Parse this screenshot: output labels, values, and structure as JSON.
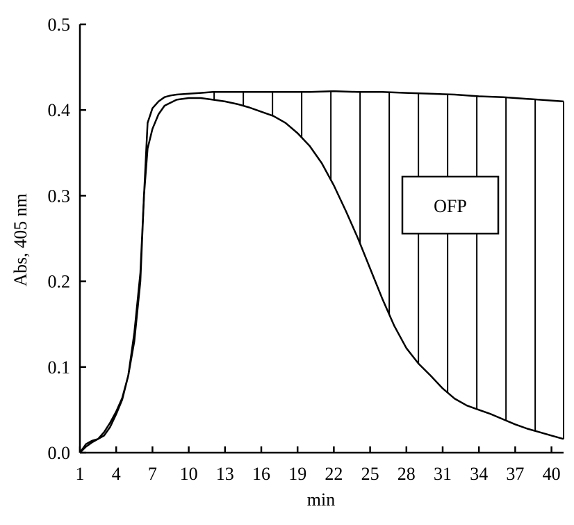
{
  "chart_data": {
    "type": "line",
    "xlabel": "min",
    "ylabel": "Abs, 405 nm",
    "xlim": [
      1,
      41
    ],
    "ylim": [
      0,
      0.5
    ],
    "x_ticks": [
      1,
      4,
      7,
      10,
      13,
      16,
      19,
      22,
      25,
      28,
      31,
      34,
      37,
      40
    ],
    "x_tick_labels": [
      "1",
      "4",
      "7",
      "10",
      "13",
      "16",
      "19",
      "22",
      "25",
      "28",
      "31",
      "34",
      "37",
      "40"
    ],
    "y_ticks": [
      0,
      0.1,
      0.2,
      0.3,
      0.4,
      0.5
    ],
    "y_tick_labels": [
      "0.0",
      "0.1",
      "0.2",
      "0.3",
      "0.4",
      "0.5"
    ],
    "grid": false,
    "series": [
      {
        "x": [
          1,
          1.5,
          2,
          2.5,
          3,
          3.5,
          4,
          4.5,
          5,
          5.5,
          6,
          6.3,
          6.6,
          7,
          7.5,
          8,
          8.5,
          9,
          10,
          11,
          12,
          14,
          16,
          18,
          20,
          22,
          24,
          26,
          28,
          30,
          32,
          34,
          36,
          38,
          40,
          41
        ],
        "values": [
          0,
          0.007,
          0.012,
          0.016,
          0.024,
          0.035,
          0.048,
          0.064,
          0.09,
          0.14,
          0.21,
          0.3,
          0.385,
          0.402,
          0.41,
          0.415,
          0.417,
          0.418,
          0.419,
          0.42,
          0.421,
          0.421,
          0.421,
          0.421,
          0.421,
          0.422,
          0.421,
          0.421,
          0.42,
          0.419,
          0.418,
          0.416,
          0.415,
          0.413,
          0.411,
          0.41
        ]
      },
      {
        "x": [
          1,
          1.5,
          2,
          2.5,
          3,
          3.5,
          4,
          4.5,
          5,
          5.5,
          6,
          6.3,
          6.6,
          7,
          7.5,
          8,
          9,
          10,
          11,
          12,
          13,
          14,
          15,
          16,
          17,
          18,
          19,
          20,
          21,
          22,
          23,
          24,
          25,
          26,
          27,
          28,
          29,
          30,
          31,
          32,
          33,
          34,
          35,
          36,
          37,
          38,
          39,
          40,
          41
        ],
        "values": [
          0,
          0.01,
          0.014,
          0.016,
          0.02,
          0.03,
          0.045,
          0.062,
          0.09,
          0.13,
          0.2,
          0.3,
          0.355,
          0.378,
          0.395,
          0.405,
          0.412,
          0.414,
          0.414,
          0.412,
          0.41,
          0.407,
          0.403,
          0.398,
          0.393,
          0.385,
          0.373,
          0.358,
          0.338,
          0.312,
          0.282,
          0.25,
          0.215,
          0.18,
          0.148,
          0.122,
          0.104,
          0.09,
          0.075,
          0.063,
          0.055,
          0.05,
          0.045,
          0.039,
          0.033,
          0.028,
          0.024,
          0.02,
          0.016
        ]
      }
    ],
    "hatch_between_series": true,
    "annotations": [
      {
        "text": "OFP",
        "x": 29.5,
        "y": 0.3
      }
    ]
  }
}
